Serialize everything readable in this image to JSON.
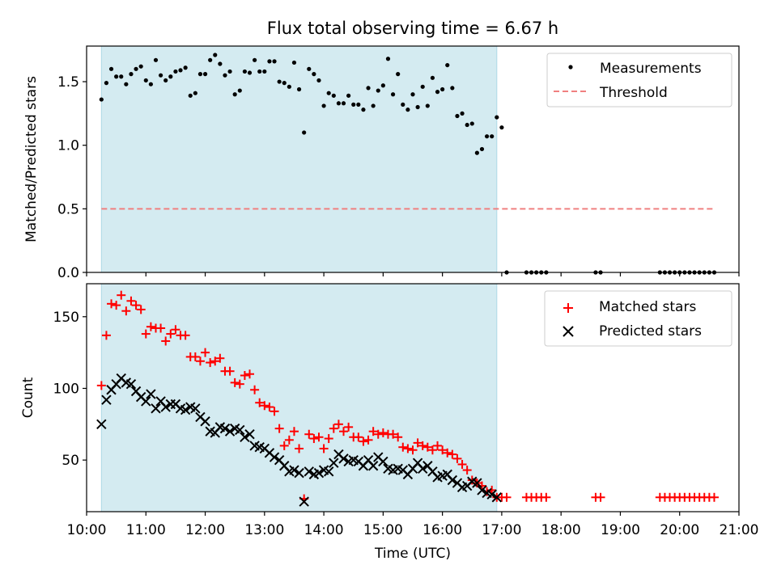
{
  "title": "Flux total observing time = 6.67 h",
  "colors": {
    "observing_window": "#d4ebf1",
    "observing_window_edge": "#add8e6",
    "threshold": "#f08080",
    "measurements": "#000000",
    "matched": "#ff0000",
    "predicted": "#000000"
  },
  "chart_data": [
    {
      "type": "scatter",
      "title": "Flux total observing time = 6.67 h",
      "xlabel": "",
      "ylabel": "Matched/Predicted stars",
      "ylim": [
        0,
        1.78
      ],
      "xlim": [
        "10:00",
        "21:00"
      ],
      "yticks": [
        "0.0",
        "0.5",
        "1.0",
        "1.5"
      ],
      "shaded_region": [
        "10:15",
        "16:55"
      ],
      "legend": {
        "placement": "upper right",
        "entries": [
          "Measurements",
          "Threshold"
        ]
      },
      "series": [
        {
          "name": "Measurements",
          "marker": "dot",
          "x": [
            "10:15",
            "10:20",
            "10:25",
            "10:30",
            "10:35",
            "10:40",
            "10:45",
            "10:50",
            "10:55",
            "11:00",
            "11:05",
            "11:10",
            "11:15",
            "11:20",
            "11:25",
            "11:30",
            "11:35",
            "11:40",
            "11:45",
            "11:50",
            "11:55",
            "12:00",
            "12:05",
            "12:10",
            "12:15",
            "12:20",
            "12:25",
            "12:30",
            "12:35",
            "12:40",
            "12:45",
            "12:50",
            "12:55",
            "13:00",
            "13:05",
            "13:10",
            "13:15",
            "13:20",
            "13:25",
            "13:30",
            "13:35",
            "13:40",
            "13:45",
            "13:50",
            "13:55",
            "14:00",
            "14:05",
            "14:10",
            "14:15",
            "14:20",
            "14:25",
            "14:30",
            "14:35",
            "14:40",
            "14:45",
            "14:50",
            "14:55",
            "15:00",
            "15:05",
            "15:10",
            "15:15",
            "15:20",
            "15:25",
            "15:30",
            "15:35",
            "15:40",
            "15:45",
            "15:50",
            "15:55",
            "16:00",
            "16:05",
            "16:10",
            "16:15",
            "16:20",
            "16:25",
            "16:30",
            "16:35",
            "16:40",
            "16:45",
            "16:50",
            "16:55",
            "17:00",
            "17:05",
            "17:25",
            "17:30",
            "17:35",
            "17:40",
            "17:45",
            "18:35",
            "18:40",
            "19:40",
            "19:45",
            "19:50",
            "19:55",
            "20:00",
            "20:05",
            "20:10",
            "20:15",
            "20:20",
            "20:25",
            "20:30",
            "20:35"
          ],
          "y": [
            1.36,
            1.49,
            1.6,
            1.54,
            1.54,
            1.48,
            1.56,
            1.6,
            1.62,
            1.51,
            1.48,
            1.67,
            1.55,
            1.51,
            1.54,
            1.58,
            1.59,
            1.61,
            1.39,
            1.41,
            1.56,
            1.56,
            1.67,
            1.71,
            1.64,
            1.55,
            1.58,
            1.4,
            1.43,
            1.58,
            1.57,
            1.67,
            1.58,
            1.58,
            1.66,
            1.66,
            1.5,
            1.49,
            1.46,
            1.65,
            1.44,
            1.1,
            1.6,
            1.56,
            1.51,
            1.31,
            1.41,
            1.39,
            1.33,
            1.33,
            1.39,
            1.32,
            1.32,
            1.28,
            1.45,
            1.31,
            1.43,
            1.47,
            1.68,
            1.4,
            1.56,
            1.32,
            1.28,
            1.4,
            1.3,
            1.46,
            1.31,
            1.53,
            1.42,
            1.44,
            1.63,
            1.45,
            1.23,
            1.25,
            1.16,
            1.17,
            0.94,
            0.97,
            1.07,
            1.07,
            1.22,
            1.14,
            0,
            0,
            0,
            0,
            0,
            0,
            0,
            0,
            0,
            0,
            0,
            0,
            0,
            0,
            0,
            0,
            0,
            0,
            0,
            0
          ]
        },
        {
          "name": "Threshold",
          "line": "dashed",
          "x": [
            "10:15",
            "20:35"
          ],
          "y": [
            0.5,
            0.5
          ]
        }
      ]
    },
    {
      "type": "scatter",
      "xlabel": "Time (UTC)",
      "ylabel": "Count",
      "ylim": [
        14,
        173
      ],
      "xlim": [
        "10:00",
        "21:00"
      ],
      "yticks": [
        "50",
        "100",
        "150"
      ],
      "xticks": [
        "10:00",
        "11:00",
        "12:00",
        "13:00",
        "14:00",
        "15:00",
        "16:00",
        "17:00",
        "18:00",
        "19:00",
        "20:00",
        "21:00"
      ],
      "shaded_region": [
        "10:15",
        "16:55"
      ],
      "legend": {
        "placement": "upper right",
        "entries": [
          "Matched stars",
          "Predicted stars"
        ]
      },
      "series": [
        {
          "name": "Matched stars",
          "marker": "plus",
          "x": [
            "10:15",
            "10:20",
            "10:25",
            "10:30",
            "10:35",
            "10:40",
            "10:45",
            "10:50",
            "10:55",
            "11:00",
            "11:05",
            "11:10",
            "11:15",
            "11:20",
            "11:25",
            "11:30",
            "11:35",
            "11:40",
            "11:45",
            "11:50",
            "11:55",
            "12:00",
            "12:05",
            "12:10",
            "12:15",
            "12:20",
            "12:25",
            "12:30",
            "12:35",
            "12:40",
            "12:45",
            "12:50",
            "12:55",
            "13:00",
            "13:05",
            "13:10",
            "13:15",
            "13:20",
            "13:25",
            "13:30",
            "13:35",
            "13:40",
            "13:45",
            "13:50",
            "13:55",
            "14:00",
            "14:05",
            "14:10",
            "14:15",
            "14:20",
            "14:25",
            "14:30",
            "14:35",
            "14:40",
            "14:45",
            "14:50",
            "14:55",
            "15:00",
            "15:05",
            "15:10",
            "15:15",
            "15:20",
            "15:25",
            "15:30",
            "15:35",
            "15:40",
            "15:45",
            "15:50",
            "15:55",
            "16:00",
            "16:05",
            "16:10",
            "16:15",
            "16:20",
            "16:25",
            "16:30",
            "16:35",
            "16:40",
            "16:45",
            "16:50",
            "16:55",
            "17:00",
            "17:05",
            "17:25",
            "17:30",
            "17:35",
            "17:40",
            "17:45",
            "18:35",
            "18:40",
            "19:40",
            "19:45",
            "19:50",
            "19:55",
            "20:00",
            "20:05",
            "20:10",
            "20:15",
            "20:20",
            "20:25",
            "20:30",
            "20:35"
          ],
          "y": [
            102,
            137,
            159,
            158,
            165,
            154,
            161,
            158,
            155,
            138,
            143,
            142,
            142,
            133,
            138,
            141,
            137,
            137,
            122,
            122,
            119,
            125,
            118,
            119,
            121,
            112,
            112,
            104,
            103,
            109,
            110,
            99,
            90,
            88,
            87,
            84,
            72,
            60,
            64,
            70,
            58,
            23,
            68,
            65,
            66,
            58,
            65,
            72,
            75,
            70,
            73,
            66,
            66,
            63,
            64,
            70,
            68,
            69,
            68,
            68,
            66,
            59,
            58,
            57,
            62,
            60,
            59,
            57,
            60,
            57,
            55,
            54,
            51,
            47,
            43,
            36,
            34,
            32,
            28,
            29,
            24,
            24,
            24,
            24,
            24,
            24,
            24,
            24,
            24,
            24,
            24,
            24,
            24,
            24,
            24,
            24,
            24,
            24,
            24,
            24,
            24,
            24
          ]
        },
        {
          "name": "Predicted stars",
          "marker": "x",
          "x": [
            "10:15",
            "10:20",
            "10:25",
            "10:30",
            "10:35",
            "10:40",
            "10:45",
            "10:50",
            "10:55",
            "11:00",
            "11:05",
            "11:10",
            "11:15",
            "11:20",
            "11:25",
            "11:30",
            "11:35",
            "11:40",
            "11:45",
            "11:50",
            "11:55",
            "12:00",
            "12:05",
            "12:10",
            "12:15",
            "12:20",
            "12:25",
            "12:30",
            "12:35",
            "12:40",
            "12:45",
            "12:50",
            "12:55",
            "13:00",
            "13:05",
            "13:10",
            "13:15",
            "13:20",
            "13:25",
            "13:30",
            "13:35",
            "13:40",
            "13:45",
            "13:50",
            "13:55",
            "14:00",
            "14:05",
            "14:10",
            "14:15",
            "14:20",
            "14:25",
            "14:30",
            "14:35",
            "14:40",
            "14:45",
            "14:50",
            "14:55",
            "15:00",
            "15:05",
            "15:10",
            "15:15",
            "15:20",
            "15:25",
            "15:30",
            "15:35",
            "15:40",
            "15:45",
            "15:50",
            "15:55",
            "16:00",
            "16:05",
            "16:10",
            "16:15",
            "16:20",
            "16:25",
            "16:30",
            "16:35",
            "16:40",
            "16:45",
            "16:50",
            "16:55"
          ],
          "y": [
            75,
            92,
            99,
            103,
            107,
            104,
            103,
            98,
            94,
            91,
            96,
            86,
            91,
            87,
            89,
            89,
            86,
            85,
            87,
            86,
            80,
            77,
            70,
            69,
            73,
            72,
            70,
            72,
            71,
            66,
            68,
            60,
            59,
            58,
            55,
            52,
            50,
            46,
            42,
            43,
            41,
            21,
            42,
            40,
            41,
            43,
            42,
            48,
            54,
            51,
            49,
            50,
            49,
            46,
            50,
            46,
            52,
            49,
            44,
            43,
            44,
            43,
            40,
            44,
            48,
            44,
            46,
            42,
            38,
            39,
            40,
            36,
            34,
            31,
            32,
            35,
            34,
            29,
            27,
            26,
            24
          ]
        }
      ]
    }
  ]
}
